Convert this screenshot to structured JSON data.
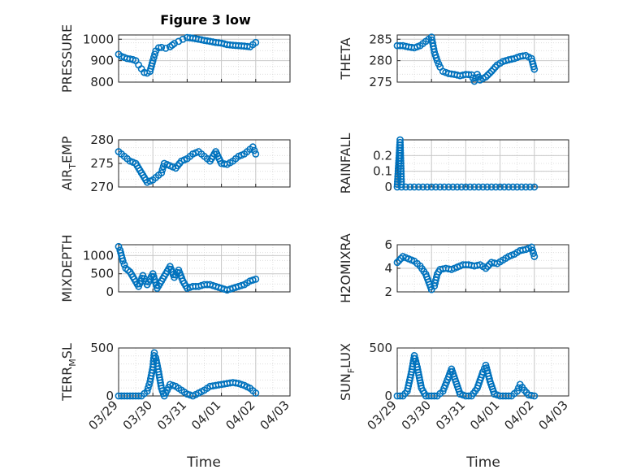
{
  "figure_title": "Figure 3 low",
  "colors": {
    "series": "#0072BD",
    "axis": "#262626",
    "grid": "#d9d9d9",
    "background": "#ffffff"
  },
  "time_axis": {
    "ticks": [
      "03/29",
      "03/30",
      "03/31",
      "04/01",
      "04/02",
      "04/03"
    ],
    "label": "Time",
    "range": [
      "2019-03-29",
      "2019-04-03"
    ]
  },
  "chart_data": [
    {
      "id": "pressure",
      "type": "scatter",
      "ylabel": "PRESSURE",
      "ylim": [
        800,
        1020
      ],
      "yticks": [
        800,
        900,
        1000
      ],
      "grid": true,
      "marker": "open-circle",
      "x": [
        "03/29 00:00",
        "03/29 02:00",
        "03/29 04:00",
        "03/29 06:00",
        "03/29 08:00",
        "03/29 10:00",
        "03/29 12:00",
        "03/29 14:00",
        "03/29 16:00",
        "03/29 18:00",
        "03/29 20:00",
        "03/29 22:00",
        "03/30 00:00",
        "03/30 02:00",
        "03/30 04:00",
        "03/30 06:00",
        "03/30 09:00",
        "03/30 12:00",
        "03/30 15:00",
        "03/30 18:00",
        "03/30 21:00",
        "03/31 00:00",
        "03/31 04:00",
        "03/31 08:00",
        "03/31 12:00",
        "03/31 16:00",
        "03/31 20:00",
        "04/01 00:00",
        "04/01 04:00",
        "04/01 08:00",
        "04/01 12:00",
        "04/01 16:00",
        "04/01 20:00",
        "04/01 22:00",
        "04/02 00:00"
      ],
      "y": [
        930,
        920,
        915,
        910,
        908,
        905,
        900,
        880,
        862,
        845,
        842,
        850,
        900,
        945,
        960,
        962,
        958,
        965,
        980,
        990,
        1000,
        1008,
        1005,
        1000,
        995,
        990,
        985,
        982,
        975,
        972,
        970,
        968,
        965,
        975,
        985
      ]
    },
    {
      "id": "theta",
      "type": "scatter",
      "ylabel": "THETA",
      "ylim": [
        275,
        286
      ],
      "yticks": [
        275,
        280,
        285
      ],
      "grid": true,
      "marker": "open-circle",
      "x": [
        "03/29 00:00",
        "03/29 04:00",
        "03/29 08:00",
        "03/29 12:00",
        "03/29 16:00",
        "03/29 20:00",
        "03/30 00:00",
        "03/30 02:00",
        "03/30 04:00",
        "03/30 06:00",
        "03/30 08:00",
        "03/30 12:00",
        "03/30 16:00",
        "03/30 20:00",
        "03/31 00:00",
        "03/31 04:00",
        "03/31 06:00",
        "03/31 08:00",
        "03/31 10:00",
        "03/31 14:00",
        "03/31 18:00",
        "03/31 22:00",
        "04/01 02:00",
        "04/01 06:00",
        "04/01 10:00",
        "04/01 14:00",
        "04/01 18:00",
        "04/01 22:00",
        "04/02 00:00"
      ],
      "y": [
        283.5,
        283.5,
        283.2,
        283,
        283.5,
        284.5,
        285.5,
        282,
        280,
        278.5,
        277.5,
        277,
        276.8,
        276.5,
        276.8,
        276.7,
        275.2,
        276.8,
        275.5,
        276.2,
        277.5,
        279,
        279.8,
        280.2,
        280.5,
        281,
        281.2,
        280.5,
        278
      ]
    },
    {
      "id": "air_temp",
      "type": "scatter",
      "ylabel": "AIR_TEMP",
      "ylim": [
        270,
        280
      ],
      "yticks": [
        270,
        275,
        280
      ],
      "grid": true,
      "marker": "open-circle",
      "x": [
        "03/29 00:00",
        "03/29 04:00",
        "03/29 08:00",
        "03/29 12:00",
        "03/29 16:00",
        "03/29 20:00",
        "03/30 00:00",
        "03/30 04:00",
        "03/30 06:00",
        "03/30 08:00",
        "03/30 12:00",
        "03/30 16:00",
        "03/30 20:00",
        "03/31 00:00",
        "03/31 04:00",
        "03/31 08:00",
        "03/31 12:00",
        "03/31 16:00",
        "03/31 20:00",
        "04/01 00:00",
        "04/01 04:00",
        "04/01 08:00",
        "04/01 12:00",
        "04/01 16:00",
        "04/01 20:00",
        "04/01 22:00",
        "04/02 00:00"
      ],
      "y": [
        277.5,
        276.5,
        275.5,
        275,
        273,
        271,
        271.5,
        272.5,
        273,
        275,
        274.5,
        274,
        275.5,
        276,
        277,
        277.5,
        276.5,
        275.5,
        277.5,
        275,
        274.8,
        275.5,
        276.5,
        277,
        278,
        278.5,
        277
      ]
    },
    {
      "id": "rainfall",
      "type": "scatter",
      "ylabel": "RAINFALL",
      "ylim": [
        0,
        0.3
      ],
      "yticks": [
        0,
        0.1,
        0.2
      ],
      "ytick_labels": [
        "0",
        "0.1",
        "0.2"
      ],
      "grid": true,
      "marker": "open-circle",
      "x": [
        "03/29 00:00",
        "03/29 02:00",
        "03/29 03:00",
        "03/29 06:00",
        "03/29 09:00",
        "03/29 12:00",
        "03/29 15:00",
        "03/29 18:00",
        "03/29 21:00",
        "03/30 00:00",
        "03/30 03:00",
        "03/30 06:00",
        "03/30 09:00",
        "03/30 12:00",
        "03/30 15:00",
        "03/30 18:00",
        "03/30 21:00",
        "03/31 00:00",
        "03/31 03:00",
        "03/31 06:00",
        "03/31 09:00",
        "03/31 12:00",
        "03/31 15:00",
        "03/31 18:00",
        "03/31 21:00",
        "04/01 00:00",
        "04/01 03:00",
        "04/01 06:00",
        "04/01 09:00",
        "04/01 12:00",
        "04/01 15:00",
        "04/01 18:00",
        "04/01 21:00",
        "04/02 00:00"
      ],
      "y": [
        0,
        0.3,
        0,
        0,
        0,
        0,
        0,
        0,
        0,
        0,
        0,
        0,
        0,
        0,
        0,
        0,
        0,
        0,
        0,
        0,
        0,
        0,
        0,
        0,
        0,
        0,
        0,
        0,
        0,
        0,
        0,
        0,
        0,
        0
      ]
    },
    {
      "id": "mixdepth",
      "type": "scatter",
      "ylabel": "MIXDEPTH",
      "ylim": [
        0,
        1300
      ],
      "yticks": [
        0,
        500,
        1000
      ],
      "grid": true,
      "marker": "open-circle",
      "x": [
        "03/29 00:00",
        "03/29 01:00",
        "03/29 03:00",
        "03/29 05:00",
        "03/29 08:00",
        "03/29 11:00",
        "03/29 14:00",
        "03/29 17:00",
        "03/29 20:00",
        "03/30 00:00",
        "03/30 03:00",
        "03/30 06:00",
        "03/30 09:00",
        "03/30 12:00",
        "03/30 15:00",
        "03/30 18:00",
        "03/30 21:00",
        "03/31 00:00",
        "03/31 04:00",
        "03/31 08:00",
        "03/31 12:00",
        "03/31 16:00",
        "03/31 20:00",
        "04/01 00:00",
        "04/01 04:00",
        "04/01 08:00",
        "04/01 12:00",
        "04/01 16:00",
        "04/01 20:00",
        "04/02 00:00"
      ],
      "y": [
        1250,
        1150,
        850,
        650,
        550,
        350,
        150,
        450,
        200,
        500,
        100,
        300,
        500,
        700,
        400,
        600,
        300,
        100,
        150,
        150,
        200,
        200,
        150,
        100,
        50,
        100,
        150,
        200,
        300,
        350
      ]
    },
    {
      "id": "h2omixra",
      "type": "scatter",
      "ylabel": "H2OMIXRA",
      "ylim": [
        2,
        6
      ],
      "yticks": [
        2,
        4,
        6
      ],
      "grid": true,
      "marker": "open-circle",
      "x": [
        "03/29 00:00",
        "03/29 04:00",
        "03/29 08:00",
        "03/29 12:00",
        "03/29 16:00",
        "03/29 20:00",
        "03/30 00:00",
        "03/30 02:00",
        "03/30 04:00",
        "03/30 06:00",
        "03/30 10:00",
        "03/30 14:00",
        "03/30 18:00",
        "03/30 22:00",
        "03/31 02:00",
        "03/31 06:00",
        "03/31 10:00",
        "03/31 14:00",
        "03/31 18:00",
        "03/31 22:00",
        "04/01 02:00",
        "04/01 06:00",
        "04/01 10:00",
        "04/01 14:00",
        "04/01 18:00",
        "04/01 22:00",
        "04/02 00:00"
      ],
      "y": [
        4.5,
        5,
        4.8,
        4.6,
        4.2,
        3.5,
        2.2,
        2.5,
        3.5,
        3.9,
        4,
        3.9,
        4.1,
        4.3,
        4.3,
        4.2,
        4.3,
        4,
        4.5,
        4.4,
        4.7,
        5,
        5.2,
        5.5,
        5.6,
        5.8,
        5
      ]
    },
    {
      "id": "terr_msl",
      "type": "scatter",
      "ylabel": "TERR_MSL",
      "ylim": [
        0,
        500
      ],
      "yticks": [
        0,
        500
      ],
      "grid": true,
      "marker": "open-circle",
      "x": [
        "03/29 00:00",
        "03/29 04:00",
        "03/29 08:00",
        "03/29 12:00",
        "03/29 16:00",
        "03/29 20:00",
        "03/29 22:00",
        "03/30 00:00",
        "03/30 01:00",
        "03/30 02:00",
        "03/30 04:00",
        "03/30 06:00",
        "03/30 08:00",
        "03/30 12:00",
        "03/30 16:00",
        "03/30 20:00",
        "03/31 00:00",
        "03/31 04:00",
        "03/31 08:00",
        "03/31 12:00",
        "03/31 16:00",
        "03/31 20:00",
        "04/01 00:00",
        "04/01 04:00",
        "04/01 08:00",
        "04/01 12:00",
        "04/01 16:00",
        "04/01 20:00",
        "04/02 00:00"
      ],
      "y": [
        0,
        0,
        0,
        0,
        0,
        50,
        150,
        300,
        450,
        400,
        250,
        80,
        0,
        120,
        100,
        60,
        20,
        0,
        30,
        60,
        100,
        110,
        120,
        130,
        140,
        130,
        110,
        80,
        30
      ]
    },
    {
      "id": "sun_flux",
      "type": "scatter",
      "ylabel": "SUN_FLUX",
      "ylim": [
        0,
        500
      ],
      "yticks": [
        0,
        500
      ],
      "grid": true,
      "marker": "open-circle",
      "x": [
        "03/29 00:00",
        "03/29 04:00",
        "03/29 07:00",
        "03/29 10:00",
        "03/29 12:00",
        "03/29 14:00",
        "03/29 17:00",
        "03/29 20:00",
        "03/30 00:00",
        "03/30 04:00",
        "03/30 08:00",
        "03/30 12:00",
        "03/30 14:00",
        "03/30 17:00",
        "03/30 20:00",
        "03/31 00:00",
        "03/31 04:00",
        "03/31 08:00",
        "03/31 12:00",
        "03/31 14:00",
        "03/31 17:00",
        "03/31 20:00",
        "04/01 00:00",
        "04/01 04:00",
        "04/01 08:00",
        "04/01 12:00",
        "04/01 14:00",
        "04/01 17:00",
        "04/01 20:00",
        "04/02 00:00"
      ],
      "y": [
        0,
        0,
        50,
        250,
        420,
        300,
        80,
        0,
        0,
        0,
        50,
        200,
        280,
        150,
        20,
        0,
        0,
        80,
        250,
        320,
        150,
        20,
        0,
        0,
        0,
        50,
        120,
        60,
        10,
        0
      ]
    }
  ]
}
